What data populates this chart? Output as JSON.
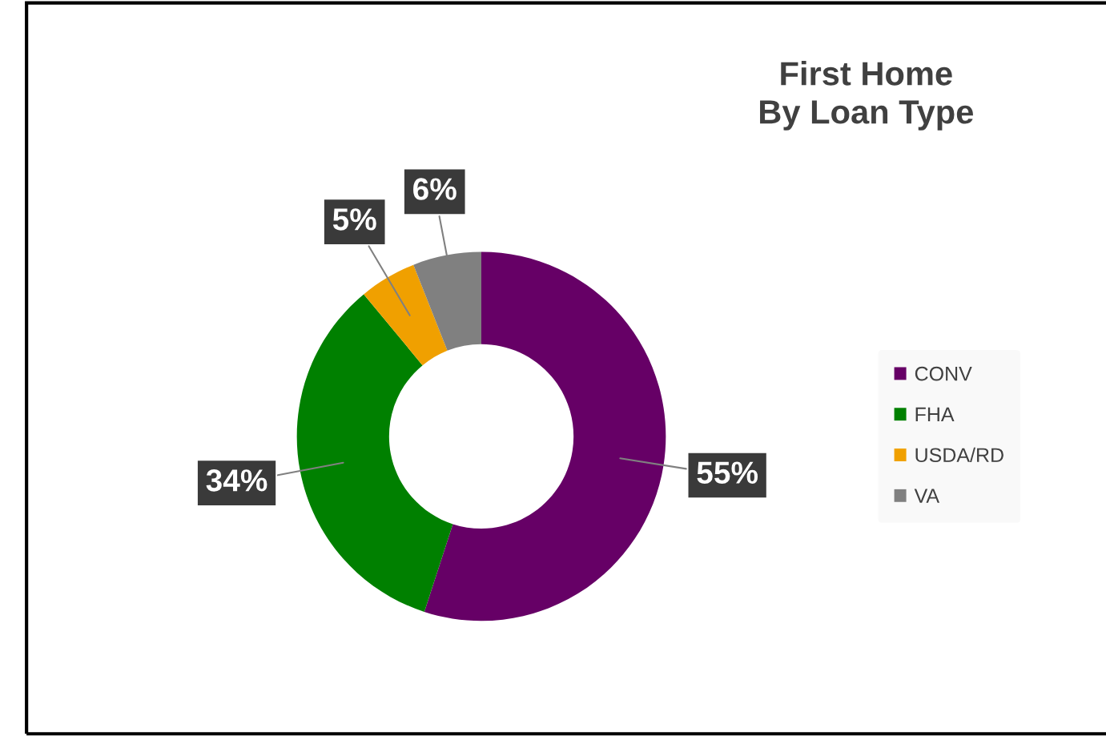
{
  "chart_data": {
    "type": "donut",
    "title": "First Home\nBy Loan Type",
    "categories": [
      "CONV",
      "FHA",
      "USDA/RD",
      "VA"
    ],
    "values": [
      55,
      34,
      5,
      6
    ],
    "colors": [
      "#660066",
      "#008000",
      "#f0a000",
      "#808080"
    ],
    "value_labels": [
      "55%",
      "34%",
      "5%",
      "6%"
    ],
    "legend": "right"
  }
}
